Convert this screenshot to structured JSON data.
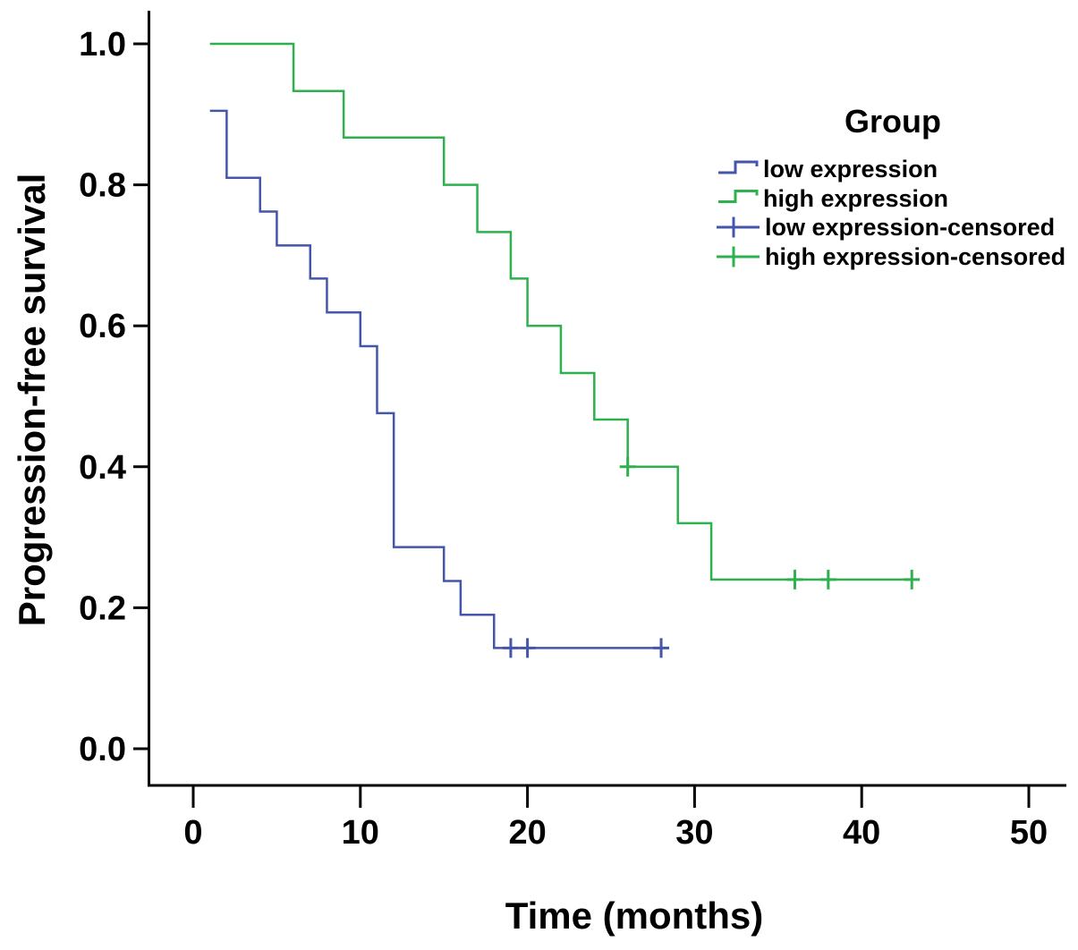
{
  "chart_data": {
    "type": "line",
    "style": "kaplan-meier-step",
    "title": "",
    "xlabel": "Time (months)",
    "ylabel": "Progression-free survival",
    "x_ticks": [
      0,
      10,
      20,
      30,
      40,
      50
    ],
    "y_tick_labels": [
      "1.0",
      "0.8",
      "0.6",
      "0.4",
      "0.2",
      "0.0"
    ],
    "xlim": [
      -2.7,
      52.2
    ],
    "ylim": [
      0,
      1.05
    ],
    "grid": false,
    "legend_position": "upper-right",
    "legend_title": "Group",
    "legend_entries": [
      "low expression",
      "high expression",
      "low expression-censored",
      "high expression-censored"
    ],
    "series": [
      {
        "name": "low expression",
        "color": "#4456AB",
        "start": {
          "time": 1,
          "survival": 0.905
        },
        "steps": [
          [
            2,
            0.81
          ],
          [
            4,
            0.762
          ],
          [
            5,
            0.714
          ],
          [
            7,
            0.667
          ],
          [
            8,
            0.619
          ],
          [
            10,
            0.571
          ],
          [
            11,
            0.476
          ],
          [
            12,
            0.286
          ],
          [
            15,
            0.238
          ],
          [
            16,
            0.19
          ],
          [
            18,
            0.143
          ]
        ],
        "end_time": 28,
        "censored": [
          [
            19,
            0.143
          ],
          [
            20,
            0.143
          ],
          [
            28,
            0.143
          ]
        ]
      },
      {
        "name": "high expression",
        "color": "#2FB04F",
        "start": {
          "time": 1,
          "survival": 1.0
        },
        "steps": [
          [
            6,
            0.933
          ],
          [
            9,
            0.867
          ],
          [
            15,
            0.8
          ],
          [
            17,
            0.733
          ],
          [
            19,
            0.667
          ],
          [
            20,
            0.6
          ],
          [
            22,
            0.533
          ],
          [
            24,
            0.467
          ],
          [
            26,
            0.4
          ],
          [
            29,
            0.32
          ],
          [
            31,
            0.24
          ]
        ],
        "end_time": 43,
        "censored": [
          [
            26,
            0.4
          ],
          [
            36,
            0.24
          ],
          [
            38,
            0.24
          ],
          [
            43,
            0.24
          ]
        ]
      }
    ]
  }
}
